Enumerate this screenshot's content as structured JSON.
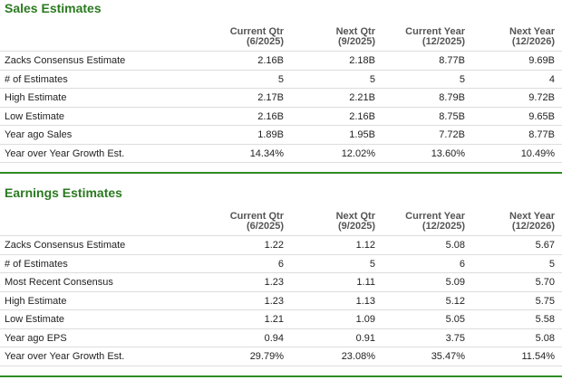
{
  "sections": [
    {
      "title": "Sales Estimates",
      "columns": [
        {
          "name": "Current Qtr",
          "period": "(6/2025)"
        },
        {
          "name": "Next Qtr",
          "period": "(9/2025)"
        },
        {
          "name": "Current Year",
          "period": "(12/2025)"
        },
        {
          "name": "Next Year",
          "period": "(12/2026)"
        }
      ],
      "rows": [
        [
          "Zacks Consensus Estimate",
          "2.16B",
          "2.18B",
          "8.77B",
          "9.69B"
        ],
        [
          "# of Estimates",
          "5",
          "5",
          "5",
          "4"
        ],
        [
          "High Estimate",
          "2.17B",
          "2.21B",
          "8.79B",
          "9.72B"
        ],
        [
          "Low Estimate",
          "2.16B",
          "2.16B",
          "8.75B",
          "9.65B"
        ],
        [
          "Year ago Sales",
          "1.89B",
          "1.95B",
          "7.72B",
          "8.77B"
        ],
        [
          "Year over Year Growth Est.",
          "14.34%",
          "12.02%",
          "13.60%",
          "10.49%"
        ]
      ]
    },
    {
      "title": "Earnings Estimates",
      "columns": [
        {
          "name": "Current Qtr",
          "period": "(6/2025)"
        },
        {
          "name": "Next Qtr",
          "period": "(9/2025)"
        },
        {
          "name": "Current Year",
          "period": "(12/2025)"
        },
        {
          "name": "Next Year",
          "period": "(12/2026)"
        }
      ],
      "rows": [
        [
          "Zacks Consensus Estimate",
          "1.22",
          "1.12",
          "5.08",
          "5.67"
        ],
        [
          "# of Estimates",
          "6",
          "5",
          "6",
          "5"
        ],
        [
          "Most Recent Consensus",
          "1.23",
          "1.11",
          "5.09",
          "5.70"
        ],
        [
          "High Estimate",
          "1.23",
          "1.13",
          "5.12",
          "5.75"
        ],
        [
          "Low Estimate",
          "1.21",
          "1.09",
          "5.05",
          "5.58"
        ],
        [
          "Year ago EPS",
          "0.94",
          "0.91",
          "3.75",
          "5.08"
        ],
        [
          "Year over Year Growth Est.",
          "29.79%",
          "23.08%",
          "35.47%",
          "11.54%"
        ]
      ]
    }
  ]
}
